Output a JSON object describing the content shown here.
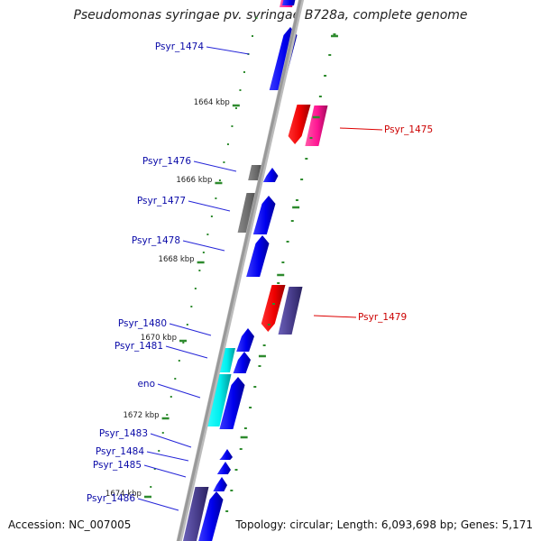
{
  "title": "Pseudomonas syringae pv. syringae B728a, complete genome",
  "footer": {
    "accession": "Accession: NC_007005",
    "summary": "Topology: circular; Length: 6,093,698 bp; Genes: 5,171"
  },
  "colors": {
    "backbone": "#999999",
    "tick": "#2e8b2e",
    "label_forward": "#0a0aa8",
    "label_reverse": "#cc0000",
    "leader_forward": "#2424d8",
    "leader_reverse": "#dd0000"
  },
  "ticks": [
    {
      "label": "1664 kbp"
    },
    {
      "label": "1666 kbp"
    },
    {
      "label": "1668 kbp"
    },
    {
      "label": "1670 kbp"
    },
    {
      "label": "1672 kbp"
    },
    {
      "label": "1674 kbp"
    }
  ],
  "genes": [
    {
      "name": "Psyr_1474",
      "strand": "forward"
    },
    {
      "name": "Psyr_1475",
      "strand": "reverse"
    },
    {
      "name": "Psyr_1476",
      "strand": "forward"
    },
    {
      "name": "Psyr_1477",
      "strand": "forward"
    },
    {
      "name": "Psyr_1478",
      "strand": "forward"
    },
    {
      "name": "Psyr_1479",
      "strand": "reverse"
    },
    {
      "name": "Psyr_1480",
      "strand": "forward"
    },
    {
      "name": "Psyr_1481",
      "strand": "forward"
    },
    {
      "name": "eno",
      "strand": "forward"
    },
    {
      "name": "Psyr_1483",
      "strand": "forward"
    },
    {
      "name": "Psyr_1484",
      "strand": "forward"
    },
    {
      "name": "Psyr_1485",
      "strand": "forward"
    },
    {
      "name": "Psyr_1486",
      "strand": "forward"
    }
  ]
}
